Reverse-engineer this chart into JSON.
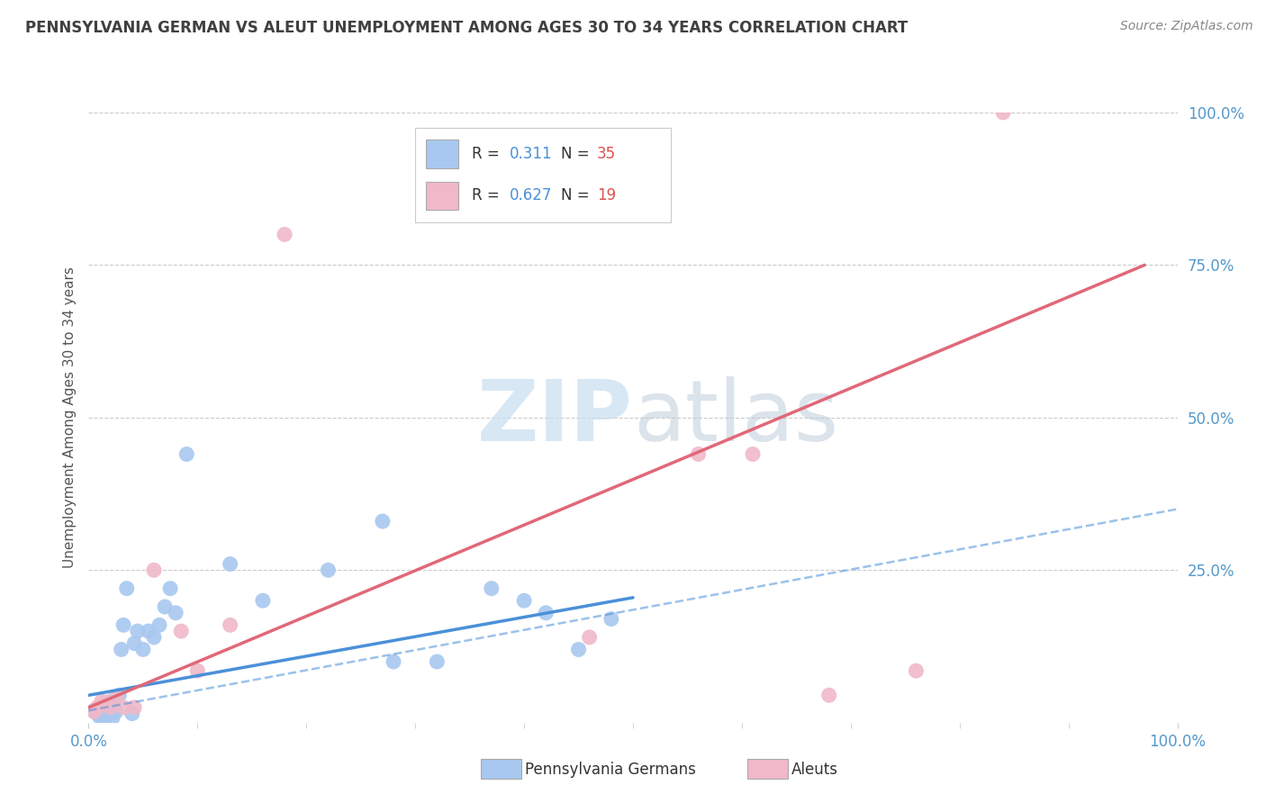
{
  "title": "PENNSYLVANIA GERMAN VS ALEUT UNEMPLOYMENT AMONG AGES 30 TO 34 YEARS CORRELATION CHART",
  "source": "Source: ZipAtlas.com",
  "ylabel": "Unemployment Among Ages 30 to 34 years",
  "xlim": [
    0,
    1.0
  ],
  "ylim": [
    0,
    1.0
  ],
  "xtick_labels": [
    "0.0%",
    "100.0%"
  ],
  "ytick_labels": [
    "25.0%",
    "50.0%",
    "75.0%",
    "100.0%"
  ],
  "ytick_positions": [
    0.25,
    0.5,
    0.75,
    1.0
  ],
  "legend_R_blue": "0.311",
  "legend_N_blue": "35",
  "legend_R_pink": "0.627",
  "legend_N_pink": "19",
  "blue_color": "#a8c8f0",
  "pink_color": "#f0b8c8",
  "blue_line_color": "#4a90d9",
  "pink_line_color": "#e06878",
  "watermark_zip": "ZIP",
  "watermark_atlas": "atlas",
  "title_color": "#404040",
  "axis_label_color": "#5599cc",
  "legend_R_color": "#4a90d9",
  "legend_N_color": "#e05050",
  "blue_scatter": [
    [
      0.005,
      0.02
    ],
    [
      0.008,
      0.015
    ],
    [
      0.01,
      0.01
    ],
    [
      0.012,
      0.018
    ],
    [
      0.015,
      0.005
    ],
    [
      0.018,
      0.025
    ],
    [
      0.02,
      0.035
    ],
    [
      0.022,
      0.008
    ],
    [
      0.025,
      0.018
    ],
    [
      0.028,
      0.045
    ],
    [
      0.03,
      0.12
    ],
    [
      0.032,
      0.16
    ],
    [
      0.035,
      0.22
    ],
    [
      0.04,
      0.015
    ],
    [
      0.042,
      0.13
    ],
    [
      0.045,
      0.15
    ],
    [
      0.05,
      0.12
    ],
    [
      0.055,
      0.15
    ],
    [
      0.06,
      0.14
    ],
    [
      0.065,
      0.16
    ],
    [
      0.07,
      0.19
    ],
    [
      0.075,
      0.22
    ],
    [
      0.08,
      0.18
    ],
    [
      0.09,
      0.44
    ],
    [
      0.13,
      0.26
    ],
    [
      0.16,
      0.2
    ],
    [
      0.22,
      0.25
    ],
    [
      0.27,
      0.33
    ],
    [
      0.28,
      0.1
    ],
    [
      0.32,
      0.1
    ],
    [
      0.37,
      0.22
    ],
    [
      0.4,
      0.2
    ],
    [
      0.42,
      0.18
    ],
    [
      0.45,
      0.12
    ],
    [
      0.48,
      0.17
    ]
  ],
  "pink_scatter": [
    [
      0.005,
      0.018
    ],
    [
      0.008,
      0.025
    ],
    [
      0.012,
      0.035
    ],
    [
      0.015,
      0.032
    ],
    [
      0.02,
      0.025
    ],
    [
      0.025,
      0.042
    ],
    [
      0.032,
      0.025
    ],
    [
      0.042,
      0.025
    ],
    [
      0.06,
      0.25
    ],
    [
      0.085,
      0.15
    ],
    [
      0.1,
      0.085
    ],
    [
      0.13,
      0.16
    ],
    [
      0.18,
      0.8
    ],
    [
      0.46,
      0.14
    ],
    [
      0.56,
      0.44
    ],
    [
      0.61,
      0.44
    ],
    [
      0.68,
      0.045
    ],
    [
      0.76,
      0.085
    ],
    [
      0.84,
      1.0
    ]
  ],
  "blue_trendline": [
    [
      0.0,
      0.045
    ],
    [
      0.5,
      0.205
    ]
  ],
  "blue_dashed_line": [
    [
      0.0,
      0.02
    ],
    [
      1.0,
      0.35
    ]
  ],
  "pink_trendline": [
    [
      0.0,
      0.025
    ],
    [
      0.97,
      0.75
    ]
  ]
}
